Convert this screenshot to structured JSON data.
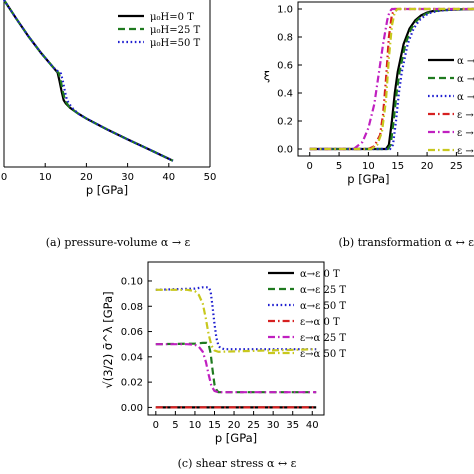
{
  "colors": {
    "black": "#000000",
    "green": "#1f7a1f",
    "blue": "#1f1fd0",
    "red": "#d62020",
    "magenta": "#c020c0",
    "olive": "#c8c81e"
  },
  "chart_data": [
    {
      "id": "a",
      "type": "line",
      "caption": "(a) pressure-volume α → ε",
      "xlabel": "p [GPa]",
      "xlim": [
        0,
        50
      ],
      "xticks": [
        "0",
        "10",
        "20",
        "30",
        "40",
        "50"
      ],
      "legend_placement": "top-right",
      "series": [
        {
          "name": "μ0H=0 T",
          "legend": "μ₀H=0 T",
          "color": "black",
          "dash": "solid",
          "x": [
            0,
            3,
            6,
            9,
            12,
            13,
            13.5,
            14,
            14.5,
            15,
            16,
            18,
            20,
            25,
            30,
            35,
            41
          ],
          "y": [
            1.0,
            0.955,
            0.912,
            0.873,
            0.838,
            0.826,
            0.805,
            0.78,
            0.76,
            0.752,
            0.742,
            0.728,
            0.716,
            0.69,
            0.666,
            0.643,
            0.615
          ]
        },
        {
          "name": "μ0H=25 T",
          "legend": "μ₀H=25 T",
          "color": "green",
          "dash": "dashed",
          "x": [
            0,
            3,
            6,
            9,
            12,
            13.3,
            13.8,
            14.3,
            14.8,
            15.3,
            16,
            18,
            20,
            25,
            30,
            35,
            41
          ],
          "y": [
            1.0,
            0.955,
            0.912,
            0.873,
            0.838,
            0.825,
            0.805,
            0.78,
            0.76,
            0.752,
            0.742,
            0.728,
            0.716,
            0.69,
            0.666,
            0.643,
            0.615
          ]
        },
        {
          "name": "μ0H=50 T",
          "legend": "μ₀H=50 T",
          "color": "blue",
          "dash": "dotted",
          "x": [
            0,
            3,
            6,
            9,
            12,
            13.8,
            14.3,
            14.8,
            15.3,
            15.8,
            16.5,
            18,
            20,
            25,
            30,
            35,
            41
          ],
          "y": [
            1.0,
            0.955,
            0.912,
            0.873,
            0.838,
            0.824,
            0.805,
            0.78,
            0.76,
            0.752,
            0.742,
            0.728,
            0.716,
            0.69,
            0.666,
            0.643,
            0.615
          ]
        }
      ]
    },
    {
      "id": "b",
      "type": "line",
      "caption": "(b) transformation α ↔ ε",
      "xlabel": "p [GPa]",
      "ylabel": "ξ",
      "xlim": [
        -2,
        28
      ],
      "ylim": [
        -0.05,
        1.05
      ],
      "xticks": [
        0,
        5,
        10,
        15,
        20,
        25
      ],
      "yticks": [
        0.0,
        0.2,
        0.4,
        0.6,
        0.8,
        1.0
      ],
      "legend": [
        "α →",
        "α →",
        "α →",
        "ε →",
        "ε →",
        "ε →"
      ],
      "series": [
        {
          "legend": "α →",
          "color": "black",
          "dash": "solid",
          "x": [
            0,
            13,
            13.5,
            14,
            14.5,
            15,
            16,
            17,
            18,
            19,
            20,
            21,
            22,
            24,
            28
          ],
          "y": [
            0,
            0,
            0.03,
            0.2,
            0.4,
            0.55,
            0.75,
            0.86,
            0.92,
            0.955,
            0.975,
            0.985,
            0.99,
            0.995,
            1.0
          ]
        },
        {
          "legend": "α →",
          "color": "green",
          "dash": "dashed",
          "x": [
            0,
            13.3,
            13.8,
            14.3,
            14.8,
            15.3,
            16.3,
            17.3,
            18.3,
            19.3,
            20.3,
            21.3,
            22.3,
            24.3,
            28
          ],
          "y": [
            0,
            0,
            0.03,
            0.2,
            0.4,
            0.55,
            0.75,
            0.86,
            0.92,
            0.955,
            0.975,
            0.985,
            0.99,
            0.995,
            1.0
          ]
        },
        {
          "legend": "α →",
          "color": "blue",
          "dash": "dotted",
          "x": [
            0,
            13.7,
            14.2,
            14.7,
            15.2,
            15.7,
            16.7,
            17.7,
            18.7,
            19.7,
            20.7,
            21.7,
            22.7,
            24.7,
            28
          ],
          "y": [
            0,
            0,
            0.03,
            0.2,
            0.4,
            0.55,
            0.75,
            0.86,
            0.92,
            0.955,
            0.975,
            0.985,
            0.99,
            0.995,
            1.0
          ]
        },
        {
          "legend": "ε →",
          "color": "red",
          "dash": "dashdot",
          "x": [
            0,
            10,
            11,
            12,
            12.5,
            13,
            13.5,
            14,
            14.5,
            28
          ],
          "y": [
            0,
            0,
            0.02,
            0.1,
            0.25,
            0.5,
            0.8,
            0.96,
            1.0,
            1.0
          ]
        },
        {
          "legend": "ε →",
          "color": "magenta",
          "dash": "dashdot",
          "x": [
            0,
            7.5,
            9,
            10,
            11,
            11.8,
            12.5,
            13.2,
            13.6,
            14,
            28
          ],
          "y": [
            0,
            0,
            0.05,
            0.15,
            0.32,
            0.55,
            0.75,
            0.92,
            0.98,
            1.0,
            1.0
          ]
        },
        {
          "legend": "ε →",
          "color": "olive",
          "dash": "dashdot",
          "x": [
            0,
            10.5,
            11.5,
            12.3,
            13,
            13.5,
            14,
            14.5,
            15,
            28
          ],
          "y": [
            0,
            0,
            0.03,
            0.12,
            0.35,
            0.65,
            0.88,
            0.98,
            1.0,
            1.0
          ]
        }
      ]
    },
    {
      "id": "c",
      "type": "line",
      "caption": "(c) shear stress α ↔ ε",
      "xlabel": "p [GPa]",
      "ylabel": "√(3/2) σ̄^λ [GPa]",
      "xlim": [
        -2,
        43
      ],
      "ylim": [
        -0.006,
        0.115
      ],
      "xticks": [
        0,
        5,
        10,
        15,
        20,
        25,
        30,
        35,
        40
      ],
      "yticks": [
        "0.00",
        "0.02",
        "0.04",
        "0.06",
        "0.08",
        "0.10"
      ],
      "legend_placement": "top-right",
      "series": [
        {
          "name": "α→ε 0 T",
          "legend": "α→ε 0 T",
          "color": "black",
          "dash": "solid",
          "x": [
            0,
            41
          ],
          "y": [
            0,
            0
          ]
        },
        {
          "name": "α→ε 25 T",
          "legend": "α→ε 25 T",
          "color": "green",
          "dash": "dashed",
          "x": [
            0,
            10,
            12,
            13,
            13.5,
            14,
            14.5,
            15,
            15.5,
            16,
            17,
            41
          ],
          "y": [
            0.05,
            0.0505,
            0.051,
            0.051,
            0.05,
            0.043,
            0.03,
            0.018,
            0.014,
            0.012,
            0.012,
            0.012
          ]
        },
        {
          "name": "α→ε 50 T",
          "legend": "α→ε 50 T",
          "color": "blue",
          "dash": "dotted",
          "x": [
            0,
            10,
            12,
            13.5,
            14,
            14.5,
            15,
            15.5,
            16,
            16.5,
            17.5,
            41
          ],
          "y": [
            0.093,
            0.094,
            0.095,
            0.095,
            0.092,
            0.08,
            0.066,
            0.055,
            0.049,
            0.047,
            0.046,
            0.046
          ]
        },
        {
          "name": "ε→α 0 T",
          "legend": "ε→α 0 T",
          "color": "red",
          "dash": "dashdot",
          "x": [
            0,
            41
          ],
          "y": [
            0.0,
            0.0
          ]
        },
        {
          "name": "ε→α 25 T",
          "legend": "ε→α 25 T",
          "color": "magenta",
          "dash": "dashdot",
          "x": [
            0,
            8,
            10,
            11,
            12,
            12.8,
            13.5,
            14.2,
            15,
            16,
            41
          ],
          "y": [
            0.05,
            0.05,
            0.0495,
            0.048,
            0.044,
            0.036,
            0.026,
            0.017,
            0.013,
            0.012,
            0.012
          ]
        },
        {
          "name": "ε→α 50 T",
          "legend": "ε→α 50 T",
          "color": "olive",
          "dash": "dashdot",
          "x": [
            0,
            8,
            10,
            11,
            12,
            12.8,
            13.5,
            14.2,
            15,
            16,
            41
          ],
          "y": [
            0.093,
            0.093,
            0.092,
            0.089,
            0.082,
            0.07,
            0.058,
            0.049,
            0.045,
            0.044,
            0.046
          ]
        }
      ]
    }
  ]
}
